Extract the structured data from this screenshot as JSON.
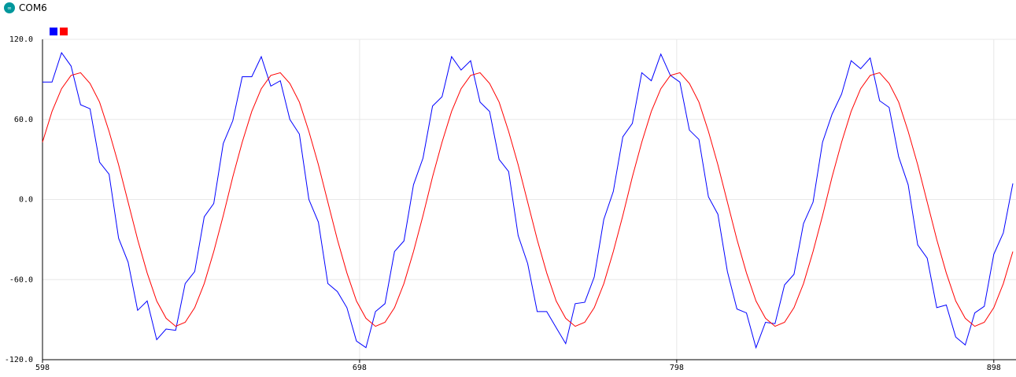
{
  "window": {
    "title": "COM6"
  },
  "chart_data": {
    "type": "line",
    "x": [
      598,
      601,
      604,
      607,
      610,
      613,
      616,
      619,
      622,
      625,
      628,
      631,
      634,
      637,
      640,
      643,
      646,
      649,
      652,
      655,
      658,
      661,
      664,
      667,
      670,
      673,
      676,
      679,
      682,
      685,
      688,
      691,
      694,
      697,
      700,
      703,
      706,
      709,
      712,
      715,
      718,
      721,
      724,
      727,
      730,
      733,
      736,
      739,
      742,
      745,
      748,
      751,
      754,
      757,
      760,
      763,
      766,
      769,
      772,
      775,
      778,
      781,
      784,
      787,
      790,
      793,
      796,
      799,
      802,
      805,
      808,
      811,
      814,
      817,
      820,
      823,
      826,
      829,
      832,
      835,
      838,
      841,
      844,
      847,
      850,
      853,
      856,
      859,
      862,
      865,
      868,
      871,
      874,
      877,
      880,
      883,
      886,
      889,
      892,
      895,
      898,
      901,
      904
    ],
    "series": [
      {
        "color": "#0000ff",
        "values": [
          88,
          88,
          110,
          100,
          71,
          68,
          28,
          19,
          -29,
          -47,
          -83,
          -76,
          -105,
          -97,
          -98,
          -63,
          -54,
          -13,
          -3,
          42,
          59,
          92,
          92,
          107,
          85,
          89,
          60,
          49,
          0,
          -17,
          -63,
          -69,
          -81,
          -106,
          -111,
          -84,
          -78,
          -39,
          -31,
          11,
          31,
          70,
          77,
          107,
          97,
          104,
          73,
          66,
          30,
          21,
          -27,
          -48,
          -84,
          -84,
          -96,
          -108,
          -78,
          -77,
          -58,
          -15,
          6,
          47,
          57,
          95,
          89,
          109,
          93,
          88,
          52,
          45,
          2,
          -11,
          -54,
          -82,
          -85,
          -111,
          -92,
          -93,
          -64,
          -56,
          -18,
          -2,
          43,
          64,
          79,
          104,
          98,
          106,
          74,
          69,
          32,
          11,
          -34,
          -44,
          -81,
          -79,
          -103,
          -109,
          -85,
          -80,
          -41,
          -25,
          12
        ]
      },
      {
        "color": "#ff0000",
        "values": [
          43,
          66,
          83,
          93,
          95,
          87,
          73,
          51,
          26,
          -2,
          -30,
          -55,
          -76,
          -89,
          -95,
          -92,
          -81,
          -63,
          -39,
          -12,
          17,
          43,
          66,
          83,
          93,
          95,
          87,
          73,
          51,
          26,
          -2,
          -30,
          -55,
          -76,
          -89,
          -95,
          -92,
          -81,
          -63,
          -39,
          -12,
          17,
          43,
          66,
          83,
          93,
          95,
          87,
          73,
          51,
          26,
          -2,
          -30,
          -55,
          -76,
          -89,
          -95,
          -92,
          -81,
          -63,
          -39,
          -12,
          17,
          43,
          66,
          83,
          93,
          95,
          87,
          73,
          51,
          26,
          -2,
          -30,
          -55,
          -76,
          -89,
          -95,
          -92,
          -81,
          -63,
          -39,
          -12,
          17,
          43,
          66,
          83,
          93,
          95,
          87,
          73,
          51,
          26,
          -2,
          -30,
          -55,
          -76,
          -89,
          -95,
          -92,
          -81,
          -63,
          -39
        ]
      }
    ],
    "xlim": [
      598,
      905
    ],
    "xticks": [
      598,
      698,
      798,
      898
    ],
    "ylim": [
      -120,
      120
    ],
    "yticks": [
      {
        "value": -120,
        "label": "-120.0"
      },
      {
        "value": -60,
        "label": "-60.0"
      },
      {
        "value": 0,
        "label": "0.0"
      },
      {
        "value": 60,
        "label": "60.0"
      },
      {
        "value": 120,
        "label": "120.0"
      }
    ],
    "grid": true
  }
}
